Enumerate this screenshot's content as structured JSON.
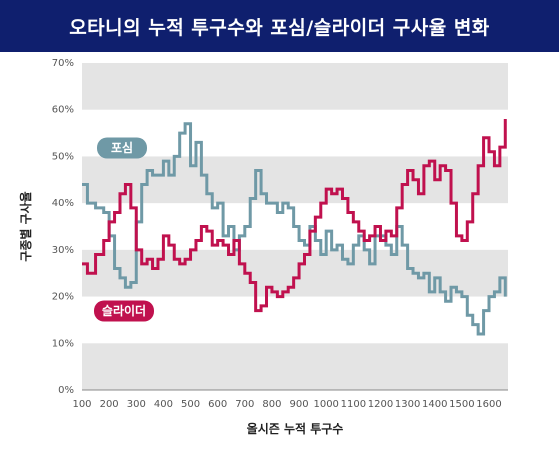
{
  "title": "오타니의 누적 투구수와 포심/슬라이더 구사율 변화",
  "colors": {
    "title_bg": "#0f1f6e",
    "fastball": "#6f99a6",
    "slider": "#c0114e",
    "band": "#e4e4e4",
    "axis": "#888888"
  },
  "chart_data": {
    "type": "line",
    "title": "오타니의 누적 투구수와 포심/슬라이더 구사율 변화",
    "xlabel": "올시즌 누적 투구수",
    "ylabel": "구종별 구사율",
    "xlim": [
      100,
      1670
    ],
    "ylim": [
      0,
      70
    ],
    "x_ticks": [
      "100",
      "200",
      "300",
      "400",
      "500",
      "600",
      "700",
      "800",
      "900",
      "1000",
      "1100",
      "1200",
      "1300",
      "1400",
      "1500",
      "1600"
    ],
    "y_ticks": [
      "0%",
      "10%",
      "20%",
      "30%",
      "40%",
      "50%",
      "60%",
      "70%"
    ],
    "grid": "alternating horizontal bands",
    "series": [
      {
        "name": "포심",
        "color": "#6f99a6",
        "x": [
          100,
          120,
          150,
          180,
          200,
          220,
          240,
          260,
          280,
          300,
          320,
          340,
          360,
          380,
          400,
          420,
          440,
          460,
          480,
          500,
          520,
          540,
          560,
          580,
          600,
          620,
          640,
          660,
          680,
          700,
          720,
          740,
          760,
          780,
          800,
          820,
          840,
          860,
          880,
          900,
          920,
          940,
          960,
          980,
          1000,
          1020,
          1040,
          1060,
          1080,
          1100,
          1120,
          1140,
          1160,
          1180,
          1200,
          1220,
          1240,
          1260,
          1280,
          1300,
          1320,
          1340,
          1360,
          1380,
          1400,
          1420,
          1440,
          1460,
          1480,
          1500,
          1520,
          1540,
          1560,
          1580,
          1600,
          1620,
          1640,
          1660
        ],
        "values": [
          44,
          40,
          39,
          38,
          33,
          26,
          24,
          22,
          23,
          36,
          44,
          47,
          46,
          46,
          49,
          46,
          50,
          55,
          57,
          48,
          53,
          46,
          42,
          39,
          40,
          33,
          35,
          30,
          33,
          35,
          41,
          47,
          42,
          40,
          40,
          38,
          40,
          39,
          35,
          32,
          31,
          35,
          32,
          29,
          34,
          30,
          31,
          28,
          27,
          31,
          33,
          30,
          27,
          33,
          33,
          31,
          29,
          35,
          31,
          26,
          25,
          24,
          25,
          21,
          24,
          21,
          19,
          22,
          21,
          20,
          16,
          14,
          12,
          17,
          20,
          21,
          24,
          20
        ]
      },
      {
        "name": "슬라이더",
        "color": "#c0114e",
        "x": [
          100,
          120,
          150,
          180,
          200,
          220,
          240,
          260,
          280,
          300,
          320,
          340,
          360,
          380,
          400,
          420,
          440,
          460,
          480,
          500,
          520,
          540,
          560,
          580,
          600,
          620,
          640,
          660,
          680,
          700,
          720,
          740,
          760,
          780,
          800,
          820,
          840,
          860,
          880,
          900,
          920,
          940,
          960,
          980,
          1000,
          1020,
          1040,
          1060,
          1080,
          1100,
          1120,
          1140,
          1160,
          1180,
          1200,
          1220,
          1240,
          1260,
          1280,
          1300,
          1320,
          1340,
          1360,
          1380,
          1400,
          1420,
          1440,
          1460,
          1480,
          1500,
          1520,
          1540,
          1560,
          1580,
          1600,
          1620,
          1640,
          1660
        ],
        "values": [
          27,
          25,
          29,
          32,
          36,
          38,
          42,
          44,
          39,
          30,
          27,
          28,
          26,
          28,
          33,
          31,
          28,
          27,
          28,
          30,
          32,
          35,
          34,
          31,
          32,
          31,
          29,
          32,
          27,
          25,
          23,
          17,
          18,
          22,
          21,
          20,
          21,
          22,
          24,
          27,
          29,
          34,
          37,
          40,
          43,
          42,
          43,
          41,
          38,
          36,
          34,
          32,
          33,
          35,
          32,
          34,
          33,
          39,
          44,
          47,
          45,
          42,
          48,
          49,
          45,
          48,
          47,
          40,
          33,
          32,
          36,
          42,
          48,
          54,
          51,
          48,
          52,
          58
        ]
      }
    ],
    "legend": "inline labels on lines"
  }
}
